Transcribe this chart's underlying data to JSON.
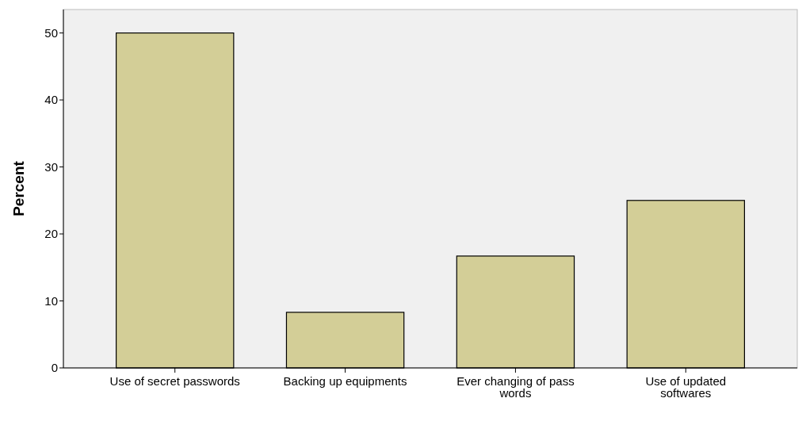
{
  "chart_data": {
    "type": "bar",
    "ylabel": "Percent",
    "categories": [
      "Use of secret passwords",
      "Backing up equipments",
      "Ever changing of pass words",
      "Use of updated softwares"
    ],
    "values": [
      50,
      8.3,
      16.7,
      25
    ],
    "color": "#d3ce97",
    "ylim": [
      0,
      53.5
    ],
    "yticks": [
      0,
      10,
      20,
      30,
      40,
      50
    ],
    "grid": false
  }
}
